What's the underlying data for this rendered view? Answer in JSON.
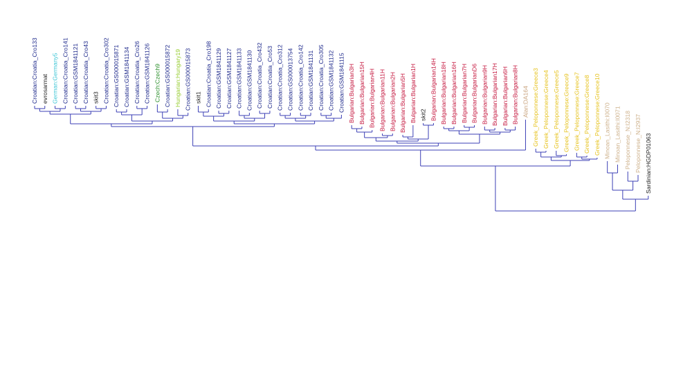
{
  "leaves": [
    {
      "label": "Croatian:Croatia_Cro133",
      "color": "#1f2a8c"
    },
    {
      "label": "evrosarmat",
      "color": "#222222"
    },
    {
      "label": "German:Germany5",
      "color": "#3ec6d6"
    },
    {
      "label": "Croatian:Croatia_Cro141",
      "color": "#1f2a8c"
    },
    {
      "label": "Croatian:GSM1841121",
      "color": "#1f2a8c"
    },
    {
      "label": "Croatian:Croatia_Cro43",
      "color": "#1f2a8c"
    },
    {
      "label": "skit3",
      "color": "#222222"
    },
    {
      "label": "Croatian:Croatia_Cro302",
      "color": "#1f2a8c"
    },
    {
      "label": "Croatian:GS000015871",
      "color": "#1f2a8c"
    },
    {
      "label": "Croatian:GSM1841134",
      "color": "#1f2a8c"
    },
    {
      "label": "Croatian:Croatia_Cro26",
      "color": "#1f2a8c"
    },
    {
      "label": "Croatian:GSM1841126",
      "color": "#1f2a8c"
    },
    {
      "label": "Czech:Czech9",
      "color": "#2a8f2a"
    },
    {
      "label": "Croatian:GS000015872",
      "color": "#1f2a8c"
    },
    {
      "label": "Hungarian:Hungary19",
      "color": "#95cc2c"
    },
    {
      "label": "Croatian:GS000015873",
      "color": "#1f2a8c"
    },
    {
      "label": "skit1",
      "color": "#222222"
    },
    {
      "label": "Croatian:Croatia_Cro198",
      "color": "#1f2a8c"
    },
    {
      "label": "Croatian:GSM1841129",
      "color": "#1f2a8c"
    },
    {
      "label": "Croatian:GSM1841127",
      "color": "#1f2a8c"
    },
    {
      "label": "Croatian:GSM1841133",
      "color": "#1f2a8c"
    },
    {
      "label": "Croatian:GSM1841130",
      "color": "#1f2a8c"
    },
    {
      "label": "Croatian:Croatia_Cro432",
      "color": "#1f2a8c"
    },
    {
      "label": "Croatian:Croatia_Cro53",
      "color": "#1f2a8c"
    },
    {
      "label": "Croatian:Croatia_Cro312",
      "color": "#1f2a8c"
    },
    {
      "label": "Croatian:GS000013754",
      "color": "#1f2a8c"
    },
    {
      "label": "Croatian:Croatia_Cro142",
      "color": "#1f2a8c"
    },
    {
      "label": "Croatian:GSM1841131",
      "color": "#1f2a8c"
    },
    {
      "label": "Croatian:Croatia_Cro305",
      "color": "#1f2a8c"
    },
    {
      "label": "Croatian:GSM1841132",
      "color": "#1f2a8c"
    },
    {
      "label": "Croatian:GSM1841115",
      "color": "#1f2a8c"
    },
    {
      "label": "Bulgarian:Bulgarian3H",
      "color": "#c4143c"
    },
    {
      "label": "Bulgarian:Bulgarian15H",
      "color": "#c4143c"
    },
    {
      "label": "Bulgarian:Bulgarian4H",
      "color": "#c4143c"
    },
    {
      "label": "Bulgarian:Bulgarian11H",
      "color": "#c4143c"
    },
    {
      "label": "Bulgarian:Bulgarian2H",
      "color": "#c4143c"
    },
    {
      "label": "Bulgarian:Bulgarian5H",
      "color": "#c4143c"
    },
    {
      "label": "Bulgarian:Bulgarian1H",
      "color": "#c4143c"
    },
    {
      "label": "skit2",
      "color": "#222222"
    },
    {
      "label": "Bulgarian:Bulgarian14H",
      "color": "#c4143c"
    },
    {
      "label": "Bulgarian:Bulgarian18H",
      "color": "#c4143c"
    },
    {
      "label": "Bulgarian:Bulgarian16H",
      "color": "#c4143c"
    },
    {
      "label": "Bulgarian:Bulgarian7H",
      "color": "#c4143c"
    },
    {
      "label": "Bulgarian:BulgarianD6",
      "color": "#c4143c"
    },
    {
      "label": "Bulgarian:Bulgarian9H",
      "color": "#c4143c"
    },
    {
      "label": "Bulgarian:Bulgarian17H",
      "color": "#c4143c"
    },
    {
      "label": "Bulgarian:Bulgarian6H",
      "color": "#c4143c"
    },
    {
      "label": "Bulgarian:Bulgarian8H",
      "color": "#c4143c"
    },
    {
      "label": "Alan:DA164",
      "color": "#c8a27c"
    },
    {
      "label": "Greek_Peloponnese:Greece3",
      "color": "#e6c21c"
    },
    {
      "label": "Greek_Peloponnese:Greece4",
      "color": "#e6c21c"
    },
    {
      "label": "Greek_Peloponnese:Greece5",
      "color": "#e6c21c"
    },
    {
      "label": "Greek_Peloponnese:Greece9",
      "color": "#e6c21c"
    },
    {
      "label": "Greek_Peloponnese:Greece7",
      "color": "#e6c21c"
    },
    {
      "label": "Greek_Peloponnese:Greece8",
      "color": "#e6c21c"
    },
    {
      "label": "Greek_Peloponnese:Greece10",
      "color": "#e6c21c"
    },
    {
      "label": "Minoan_Lasithi:I0070",
      "color": "#cdb08a"
    },
    {
      "label": "Minoan_Lasithi:I0071",
      "color": "#cdb08a"
    },
    {
      "label": "Peloponnese_N:I2318",
      "color": "#cdb08a"
    },
    {
      "label": "Peloponnese_N:I2937",
      "color": "#cdb08a"
    },
    {
      "label": "Sardinian:HGDP01063",
      "color": "#222222"
    }
  ]
}
